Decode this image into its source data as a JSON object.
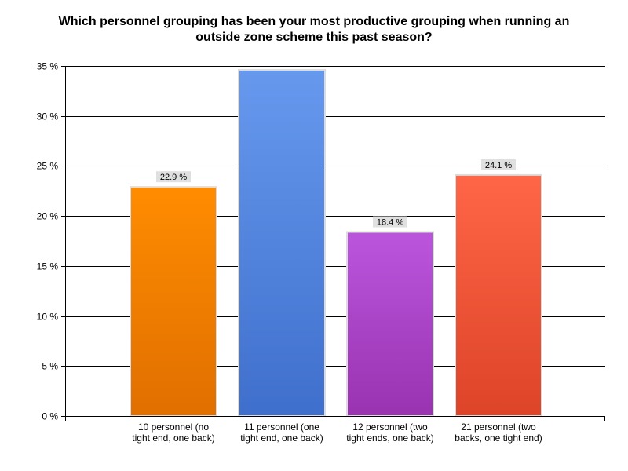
{
  "chart_data": {
    "type": "bar",
    "title": "Which personnel grouping has been your most productive grouping when running an\noutside zone scheme this past season?",
    "xlabel": "",
    "ylabel": "",
    "ylim": [
      0,
      35
    ],
    "ytick_step": 5,
    "ytick_suffix": " %",
    "grid": true,
    "legend": "none",
    "categories": [
      "10 personnel (no tight end, one back)",
      "11 personnel (one tight end, one back)",
      "12 personnel (two tight ends, one back)",
      "21 personnel (two backs, one tight end)"
    ],
    "category_label_lines": [
      [
        "10 personnel (no",
        "tight end, one back)"
      ],
      [
        "11 personnel (one",
        "tight end, one back)"
      ],
      [
        "12 personnel (two",
        "tight ends, one back)"
      ],
      [
        "21 personnel (two",
        "backs, one tight end)"
      ]
    ],
    "values": [
      22.9,
      34.6,
      18.4,
      24.1
    ],
    "data_labels": [
      "22.9 %",
      null,
      "18.4 %",
      "24.1 %"
    ],
    "colors": {
      "bars": [
        [
          "#ff8c00",
          "#e06f00"
        ],
        [
          "#6699ee",
          "#3f6fcc"
        ],
        [
          "#bb55dd",
          "#9933b0"
        ],
        [
          "#ff6647",
          "#dd4428"
        ]
      ],
      "bar_border": "#dcdcdc",
      "label_bg": "#e0e0e0",
      "grid": "#000000"
    }
  }
}
